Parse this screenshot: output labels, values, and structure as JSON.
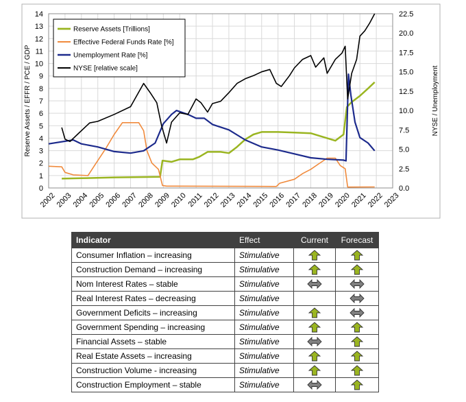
{
  "chart_data": {
    "type": "line",
    "title": "",
    "xlabel": "",
    "ylabel_left": "Reserve Assets / EFFR / PCE / GDP",
    "ylabel_right": "NYSE / Unemployment",
    "xlim": [
      2002,
      2023
    ],
    "ylim_left": [
      0,
      14
    ],
    "ylim_right": [
      0,
      22.5
    ],
    "x_ticks": [
      "2002",
      "2003",
      "2004",
      "2005",
      "2006",
      "2007",
      "2008",
      "2009",
      "2010",
      "2011",
      "2012",
      "2013",
      "2014",
      "2015",
      "2016",
      "2017",
      "2018",
      "2019",
      "2020",
      "2021",
      "2022",
      "2023"
    ],
    "y_left_ticks": [
      "0",
      "1",
      "2",
      "3",
      "4",
      "5",
      "6",
      "7",
      "8",
      "9",
      "10",
      "11",
      "12",
      "13",
      "14"
    ],
    "y_right_ticks": [
      "0.0",
      "2.5",
      "5.0",
      "7.5",
      "10.0",
      "12.5",
      "15.0",
      "17.5",
      "20.0",
      "22.5"
    ],
    "grid": true,
    "legend_position": "top-left",
    "series": [
      {
        "name": "Reserve Assets [Trillions]",
        "axis": "left",
        "color": "#9ab520",
        "points": [
          [
            2002.8,
            0.75
          ],
          [
            2004,
            0.78
          ],
          [
            2006,
            0.85
          ],
          [
            2008.8,
            0.9
          ],
          [
            2008.95,
            2.2
          ],
          [
            2009.5,
            2.1
          ],
          [
            2010,
            2.3
          ],
          [
            2010.8,
            2.3
          ],
          [
            2011.2,
            2.5
          ],
          [
            2011.7,
            2.9
          ],
          [
            2012.5,
            2.9
          ],
          [
            2013,
            2.8
          ],
          [
            2013.5,
            3.3
          ],
          [
            2014,
            3.9
          ],
          [
            2014.5,
            4.3
          ],
          [
            2015,
            4.5
          ],
          [
            2016,
            4.5
          ],
          [
            2017,
            4.45
          ],
          [
            2018,
            4.4
          ],
          [
            2018.5,
            4.2
          ],
          [
            2019,
            4.0
          ],
          [
            2019.5,
            3.8
          ],
          [
            2019.8,
            4.1
          ],
          [
            2020,
            4.3
          ],
          [
            2020.2,
            6.5
          ],
          [
            2020.5,
            6.9
          ],
          [
            2021,
            7.4
          ],
          [
            2021.5,
            8.0
          ],
          [
            2021.9,
            8.5
          ]
        ]
      },
      {
        "name": "Effective Federal Funds Rate [%]",
        "axis": "left",
        "color": "#f08a3c",
        "points": [
          [
            2002,
            1.75
          ],
          [
            2002.8,
            1.7
          ],
          [
            2003,
            1.25
          ],
          [
            2003.5,
            1.05
          ],
          [
            2004.4,
            1.0
          ],
          [
            2004.8,
            1.8
          ],
          [
            2005.5,
            3.2
          ],
          [
            2006,
            4.3
          ],
          [
            2006.5,
            5.25
          ],
          [
            2007.5,
            5.25
          ],
          [
            2007.8,
            4.6
          ],
          [
            2008,
            3.0
          ],
          [
            2008.3,
            2.0
          ],
          [
            2008.7,
            1.5
          ],
          [
            2008.95,
            0.2
          ],
          [
            2009.2,
            0.15
          ],
          [
            2015.9,
            0.12
          ],
          [
            2016.1,
            0.38
          ],
          [
            2017,
            0.7
          ],
          [
            2017.5,
            1.15
          ],
          [
            2018,
            1.5
          ],
          [
            2018.5,
            1.95
          ],
          [
            2019,
            2.4
          ],
          [
            2019.5,
            2.4
          ],
          [
            2019.8,
            1.8
          ],
          [
            2020.1,
            1.55
          ],
          [
            2020.25,
            0.07
          ],
          [
            2021.9,
            0.08
          ]
        ]
      },
      {
        "name": "Unemployment Rate [%]",
        "axis": "right",
        "color": "#1c2a8c",
        "points": [
          [
            2002,
            5.7
          ],
          [
            2003.5,
            6.2
          ],
          [
            2004,
            5.7
          ],
          [
            2005,
            5.3
          ],
          [
            2006,
            4.7
          ],
          [
            2007,
            4.5
          ],
          [
            2007.8,
            4.8
          ],
          [
            2008.5,
            5.8
          ],
          [
            2009,
            8.3
          ],
          [
            2009.5,
            9.5
          ],
          [
            2009.8,
            10.0
          ],
          [
            2010.5,
            9.5
          ],
          [
            2011,
            9.0
          ],
          [
            2011.5,
            9.0
          ],
          [
            2012,
            8.2
          ],
          [
            2013,
            7.5
          ],
          [
            2014,
            6.2
          ],
          [
            2015,
            5.3
          ],
          [
            2016,
            4.9
          ],
          [
            2017,
            4.4
          ],
          [
            2018,
            3.9
          ],
          [
            2019,
            3.7
          ],
          [
            2020,
            3.6
          ],
          [
            2020.15,
            3.5
          ],
          [
            2020.3,
            14.7
          ],
          [
            2020.45,
            12.0
          ],
          [
            2020.7,
            8.5
          ],
          [
            2021,
            6.5
          ],
          [
            2021.5,
            5.8
          ],
          [
            2021.9,
            4.8
          ]
        ]
      },
      {
        "name": "NYSE [relative scale]",
        "axis": "right",
        "color": "#000000",
        "points": [
          [
            2002.8,
            7.8
          ],
          [
            2003,
            6.3
          ],
          [
            2003.3,
            6.0
          ],
          [
            2003.8,
            7.0
          ],
          [
            2004.5,
            8.4
          ],
          [
            2005,
            8.6
          ],
          [
            2006,
            9.5
          ],
          [
            2007,
            10.5
          ],
          [
            2007.8,
            13.5
          ],
          [
            2008.2,
            12.3
          ],
          [
            2008.6,
            11.0
          ],
          [
            2008.9,
            8.0
          ],
          [
            2009.2,
            5.8
          ],
          [
            2009.5,
            8.5
          ],
          [
            2010,
            9.7
          ],
          [
            2010.5,
            9.5
          ],
          [
            2011,
            11.5
          ],
          [
            2011.3,
            11.0
          ],
          [
            2011.7,
            9.8
          ],
          [
            2012,
            10.9
          ],
          [
            2012.5,
            11.2
          ],
          [
            2013,
            12.3
          ],
          [
            2013.5,
            13.5
          ],
          [
            2014,
            14.1
          ],
          [
            2014.5,
            14.5
          ],
          [
            2015,
            15.0
          ],
          [
            2015.5,
            15.3
          ],
          [
            2015.9,
            13.5
          ],
          [
            2016.2,
            13.1
          ],
          [
            2016.7,
            14.5
          ],
          [
            2017,
            15.5
          ],
          [
            2017.5,
            16.6
          ],
          [
            2018,
            17.1
          ],
          [
            2018.3,
            15.6
          ],
          [
            2018.8,
            16.8
          ],
          [
            2019,
            14.8
          ],
          [
            2019.5,
            16.6
          ],
          [
            2019.9,
            17.4
          ],
          [
            2020.1,
            18.3
          ],
          [
            2020.25,
            11.5
          ],
          [
            2020.5,
            14.8
          ],
          [
            2020.8,
            16.6
          ],
          [
            2021,
            19.6
          ],
          [
            2021.3,
            20.3
          ],
          [
            2021.6,
            21.3
          ],
          [
            2021.9,
            22.5
          ]
        ]
      }
    ]
  },
  "table": {
    "headers": [
      "Indicator",
      "Effect",
      "Current",
      "Forecast"
    ],
    "rows": [
      {
        "indicator": "Consumer Inflation – increasing",
        "effect": "Stimulative",
        "current": "up-arrow",
        "forecast": "up-arrow"
      },
      {
        "indicator": "Construction Demand – increasing",
        "effect": "Stimulative",
        "current": "up-arrow",
        "forecast": "up-arrow"
      },
      {
        "indicator": "Nom Interest Rates – stable",
        "effect": "Stimulative",
        "current": "sideways-arrow",
        "forecast": "sideways-arrow"
      },
      {
        "indicator": "Real Interest Rates – decreasing",
        "effect": "Stimulative",
        "current": "none",
        "forecast": "sideways-arrow"
      },
      {
        "indicator": "Government Deficits – increasing",
        "effect": "Stimulative",
        "current": "up-arrow",
        "forecast": "sideways-arrow"
      },
      {
        "indicator": "Government Spending – increasing",
        "effect": "Stimulative",
        "current": "up-arrow",
        "forecast": "up-arrow"
      },
      {
        "indicator": "Financial Assets – stable",
        "effect": "Stimulative",
        "current": "sideways-arrow",
        "forecast": "up-arrow"
      },
      {
        "indicator": "Real Estate Assets – increasing",
        "effect": "Stimulative",
        "current": "up-arrow",
        "forecast": "up-arrow"
      },
      {
        "indicator": "Construction Volume - increasing",
        "effect": "Stimulative",
        "current": "up-arrow",
        "forecast": "up-arrow"
      },
      {
        "indicator": "Construction Employment – stable",
        "effect": "Stimulative",
        "current": "sideways-arrow",
        "forecast": "up-arrow"
      }
    ]
  },
  "colors": {
    "up_arrow": "#9ab520",
    "sideways_arrow": "#808080",
    "header_bg": "#404040"
  }
}
